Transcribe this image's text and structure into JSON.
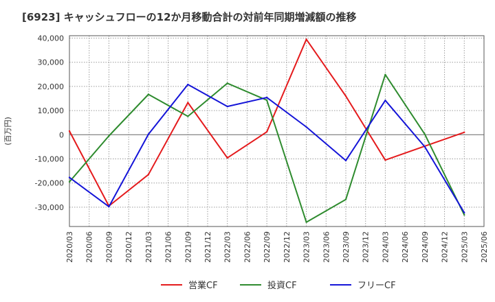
{
  "chart_data": {
    "type": "line",
    "title": "[6923]  キャッシュフローの12か月移動合計の対前年同期増減額の推移",
    "ylabel": "(百万円)",
    "xlabel": "",
    "ylim": [
      -38000,
      41000
    ],
    "yticks": [
      40000,
      30000,
      20000,
      10000,
      0,
      -10000,
      -20000,
      -30000
    ],
    "ytick_labels": [
      "40,000",
      "30,000",
      "20,000",
      "10,000",
      "0",
      "-10,000",
      "-20,000",
      "-30,000"
    ],
    "x_categories": [
      "2020/03",
      "2020/06",
      "2020/09",
      "2020/12",
      "2021/03",
      "2021/06",
      "2021/09",
      "2021/12",
      "2022/03",
      "2022/06",
      "2022/09",
      "2022/12",
      "2023/03",
      "2023/06",
      "2023/09",
      "2023/12",
      "2024/03",
      "2024/06",
      "2024/09",
      "2024/12",
      "2025/03",
      "2025/06"
    ],
    "grid": true,
    "legend_position": "bottom",
    "series": [
      {
        "name": "営業CF",
        "color": "#e41a1c",
        "points": [
          [
            "2020/03",
            1500
          ],
          [
            "2020/09",
            -29500
          ],
          [
            "2021/03",
            -16500
          ],
          [
            "2021/09",
            13300
          ],
          [
            "2022/03",
            -9600
          ],
          [
            "2022/09",
            1200
          ],
          [
            "2023/03",
            39500
          ],
          [
            "2023/09",
            16000
          ],
          [
            "2024/03",
            -10500
          ],
          [
            "2025/03",
            1000
          ]
        ]
      },
      {
        "name": "投資CF",
        "color": "#2e8b2e",
        "points": [
          [
            "2020/03",
            -19500
          ],
          [
            "2020/09",
            -500
          ],
          [
            "2021/03",
            16700
          ],
          [
            "2021/09",
            7600
          ],
          [
            "2022/03",
            21300
          ],
          [
            "2022/09",
            14300
          ],
          [
            "2023/03",
            -36200
          ],
          [
            "2023/09",
            -26800
          ],
          [
            "2024/03",
            24900
          ],
          [
            "2024/09",
            200
          ],
          [
            "2025/03",
            -33200
          ]
        ]
      },
      {
        "name": "フリーCF",
        "color": "#1414d8",
        "points": [
          [
            "2020/03",
            -17700
          ],
          [
            "2020/09",
            -29800
          ],
          [
            "2021/03",
            200
          ],
          [
            "2021/09",
            20800
          ],
          [
            "2022/03",
            11700
          ],
          [
            "2022/09",
            15400
          ],
          [
            "2023/03",
            3200
          ],
          [
            "2023/09",
            -10700
          ],
          [
            "2024/03",
            14200
          ],
          [
            "2024/09",
            -5000
          ],
          [
            "2025/03",
            -32300
          ]
        ]
      }
    ]
  }
}
